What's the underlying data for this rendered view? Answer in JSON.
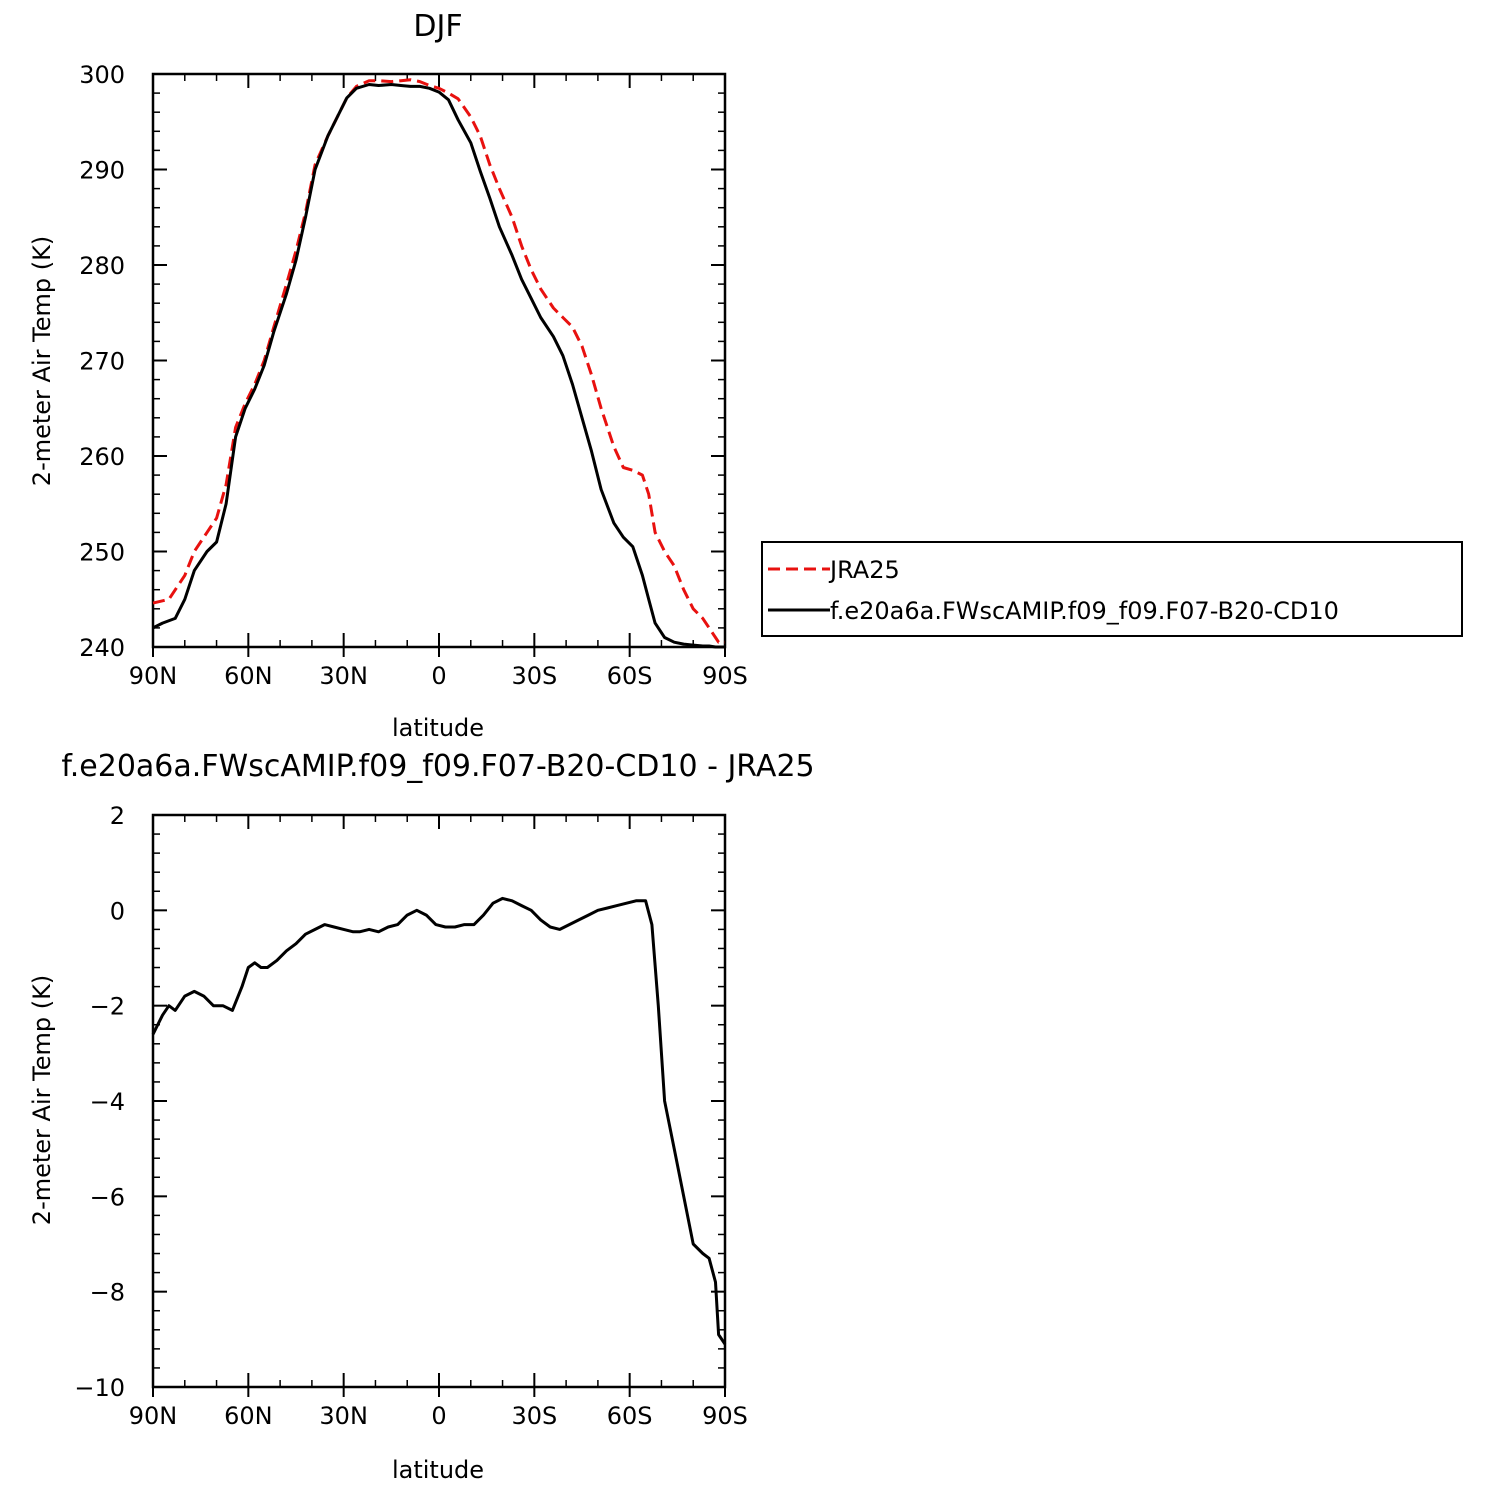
{
  "chart_data": [
    {
      "type": "line",
      "title": "DJF",
      "xlabel": "latitude",
      "ylabel": "2-meter Air Temp (K)",
      "xlim": [
        90,
        -90
      ],
      "ylim": [
        240,
        300
      ],
      "xticks": [
        90,
        60,
        30,
        0,
        -30,
        -60,
        -90
      ],
      "xtick_labels": [
        "90N",
        "60N",
        "30N",
        "0",
        "30S",
        "60S",
        "90S"
      ],
      "yticks": [
        240,
        250,
        260,
        270,
        280,
        290,
        300
      ],
      "ytick_labels": [
        "240",
        "250",
        "260",
        "270",
        "280",
        "290",
        "300"
      ],
      "grid": false,
      "legend": "right",
      "series": [
        {
          "name": "JRA25",
          "color": "#e8110f",
          "dash": "dashed",
          "x": [
            90,
            85,
            80,
            77,
            73,
            70,
            67,
            64,
            61,
            58,
            55,
            52,
            48,
            45,
            42,
            39,
            35,
            32,
            29,
            26,
            22,
            19,
            15,
            12,
            9,
            6,
            3,
            0,
            -3,
            -6,
            -10,
            -13,
            -16,
            -19,
            -23,
            -26,
            -29,
            -32,
            -36,
            -39,
            -42,
            -45,
            -48,
            -51,
            -55,
            -58,
            -61,
            -64,
            -66,
            -68,
            -71,
            -74,
            -77,
            -80,
            -83,
            -85,
            -87,
            -88,
            -90
          ],
          "y": [
            244.6,
            245.0,
            247.5,
            250.0,
            252.0,
            253.5,
            257.0,
            263.0,
            265.5,
            267.5,
            270.0,
            273.5,
            278.0,
            281.5,
            285.5,
            290.5,
            293.5,
            295.5,
            297.5,
            298.7,
            299.3,
            299.3,
            299.2,
            299.3,
            299.4,
            299.2,
            298.8,
            298.5,
            298.0,
            297.4,
            295.5,
            293.5,
            290.5,
            288.0,
            285.0,
            282.0,
            279.5,
            277.5,
            275.5,
            274.5,
            273.5,
            271.5,
            268.5,
            265.0,
            261.0,
            258.8,
            258.5,
            258.0,
            256.0,
            252.0,
            250.0,
            248.5,
            246.0,
            244.0,
            243.0,
            242.0,
            241.0,
            240.5,
            240.5
          ]
        },
        {
          "name": "f.e20a6a.FWscAMIP.f09_f09.F07-B20-CD10",
          "color": "#000000",
          "dash": "solid",
          "x": [
            90,
            87,
            83,
            80,
            77,
            73,
            70,
            67,
            64,
            61,
            58,
            55,
            52,
            48,
            45,
            42,
            39,
            35,
            32,
            29,
            26,
            22,
            19,
            15,
            12,
            9,
            6,
            3,
            0,
            -3,
            -6,
            -10,
            -13,
            -16,
            -19,
            -23,
            -26,
            -29,
            -32,
            -36,
            -39,
            -42,
            -45,
            -48,
            -51,
            -55,
            -58,
            -61,
            -64,
            -66,
            -68,
            -71,
            -74,
            -77,
            -80,
            -83,
            -85,
            -87,
            -88,
            -90
          ],
          "y": [
            242.0,
            242.5,
            243.0,
            245.0,
            248.0,
            250.0,
            251.0,
            255.0,
            262.0,
            265.0,
            267.0,
            269.5,
            273.0,
            277.0,
            280.5,
            285.0,
            290.0,
            293.5,
            295.5,
            297.5,
            298.5,
            298.9,
            298.8,
            298.9,
            298.8,
            298.7,
            298.7,
            298.5,
            298.1,
            297.3,
            295.2,
            292.8,
            289.8,
            287.0,
            284.0,
            281.0,
            278.5,
            276.5,
            274.5,
            272.5,
            270.5,
            267.5,
            264.0,
            260.5,
            256.5,
            253.0,
            251.5,
            250.5,
            247.5,
            245.0,
            242.5,
            241.0,
            240.5,
            240.3,
            240.2,
            240.1,
            240.1,
            240.0,
            240.0,
            240.0
          ]
        }
      ]
    },
    {
      "type": "line",
      "title": "f.e20a6a.FWscAMIP.f09_f09.F07-B20-CD10 - JRA25",
      "xlabel": "latitude",
      "ylabel": "2-meter Air Temp (K)",
      "xlim": [
        90,
        -90
      ],
      "ylim": [
        -10,
        2
      ],
      "xticks": [
        90,
        60,
        30,
        0,
        -30,
        -60,
        -90
      ],
      "xtick_labels": [
        "90N",
        "60N",
        "30N",
        "0",
        "30S",
        "60S",
        "90S"
      ],
      "yticks": [
        -10,
        -8,
        -6,
        -4,
        -2,
        0,
        2
      ],
      "ytick_labels": [
        "−10",
        "−8",
        "−6",
        "−4",
        "−2",
        "0",
        "2"
      ],
      "grid": false,
      "series": [
        {
          "color": "#000000",
          "dash": "solid",
          "x": [
            90,
            87,
            85,
            83,
            80,
            77,
            74,
            71,
            68,
            65,
            62,
            60,
            58,
            56,
            54,
            51,
            48,
            45,
            42,
            39,
            36,
            33,
            30,
            27,
            25,
            22,
            19,
            16,
            13,
            10,
            7,
            4,
            1,
            -2,
            -5,
            -8,
            -11,
            -14,
            -17,
            -20,
            -23,
            -26,
            -29,
            -32,
            -35,
            -38,
            -41,
            -44,
            -47,
            -50,
            -53,
            -56,
            -59,
            -62,
            -65,
            -67,
            -69,
            -71,
            -74,
            -77,
            -80,
            -83,
            -85,
            -87,
            -88,
            -90
          ],
          "y": [
            -2.6,
            -2.2,
            -2.0,
            -2.1,
            -1.8,
            -1.7,
            -1.8,
            -2.0,
            -2.0,
            -2.1,
            -1.6,
            -1.2,
            -1.1,
            -1.2,
            -1.2,
            -1.05,
            -0.85,
            -0.7,
            -0.5,
            -0.4,
            -0.3,
            -0.35,
            -0.4,
            -0.45,
            -0.45,
            -0.4,
            -0.45,
            -0.35,
            -0.3,
            -0.1,
            0.0,
            -0.1,
            -0.3,
            -0.35,
            -0.35,
            -0.3,
            -0.3,
            -0.1,
            0.15,
            0.25,
            0.2,
            0.1,
            0.0,
            -0.2,
            -0.35,
            -0.4,
            -0.3,
            -0.2,
            -0.1,
            0.0,
            0.05,
            0.1,
            0.15,
            0.2,
            0.2,
            -0.3,
            -2.0,
            -4.0,
            -5.0,
            -6.0,
            -7.0,
            -7.2,
            -7.3,
            -7.8,
            -8.9,
            -9.1
          ]
        }
      ]
    }
  ]
}
